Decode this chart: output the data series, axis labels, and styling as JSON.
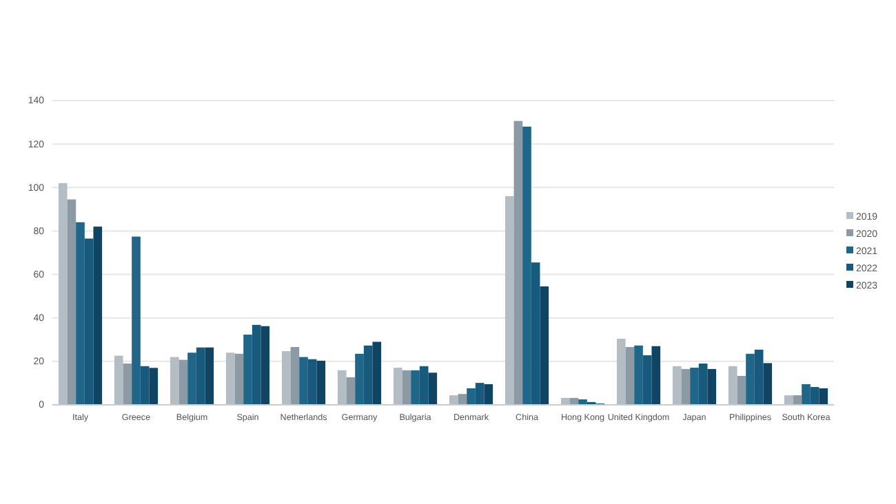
{
  "chart_data": {
    "type": "bar",
    "categories": [
      "Italy",
      "Greece",
      "Belgium",
      "Spain",
      "Netherlands",
      "Germany",
      "Bulgaria",
      "Denmark",
      "China",
      "Hong Kong",
      "United Kingdom",
      "Japan",
      "Philippines",
      "South Korea"
    ],
    "series": [
      {
        "name": "2019",
        "color": "#b4bcc4",
        "values": [
          102,
          22.6,
          22,
          24,
          24.7,
          15.9,
          17.1,
          4.4,
          96,
          3.2,
          30.4,
          17.8,
          17.8,
          4.4
        ]
      },
      {
        "name": "2020",
        "color": "#8c9aa6",
        "values": [
          94.5,
          19,
          20.7,
          23.5,
          26.6,
          12.7,
          15.9,
          5,
          130.6,
          3.2,
          26.6,
          16.5,
          13.3,
          4.4
        ]
      },
      {
        "name": "2021",
        "color": "#1f6688",
        "values": [
          84,
          77.4,
          24,
          32.3,
          22,
          23.5,
          15.9,
          7.6,
          128,
          2.5,
          27.3,
          17.1,
          23.5,
          9.5
        ]
      },
      {
        "name": "2022",
        "color": "#175a7e",
        "values": [
          76.5,
          17.8,
          26.4,
          36.8,
          21,
          27.3,
          17.8,
          10.1,
          65.5,
          1.3,
          22.8,
          19,
          25.4,
          8.2
        ]
      },
      {
        "name": "2023",
        "color": "#0f4563",
        "values": [
          82,
          17,
          26.4,
          36.2,
          20.3,
          29,
          14.8,
          9.5,
          54.5,
          0.6,
          27,
          16.5,
          19.2,
          7.6
        ]
      }
    ],
    "ylim": [
      0,
      140
    ],
    "yticks": [
      0,
      20,
      40,
      60,
      80,
      100,
      120,
      140
    ],
    "grid": "y",
    "legend": "right"
  }
}
